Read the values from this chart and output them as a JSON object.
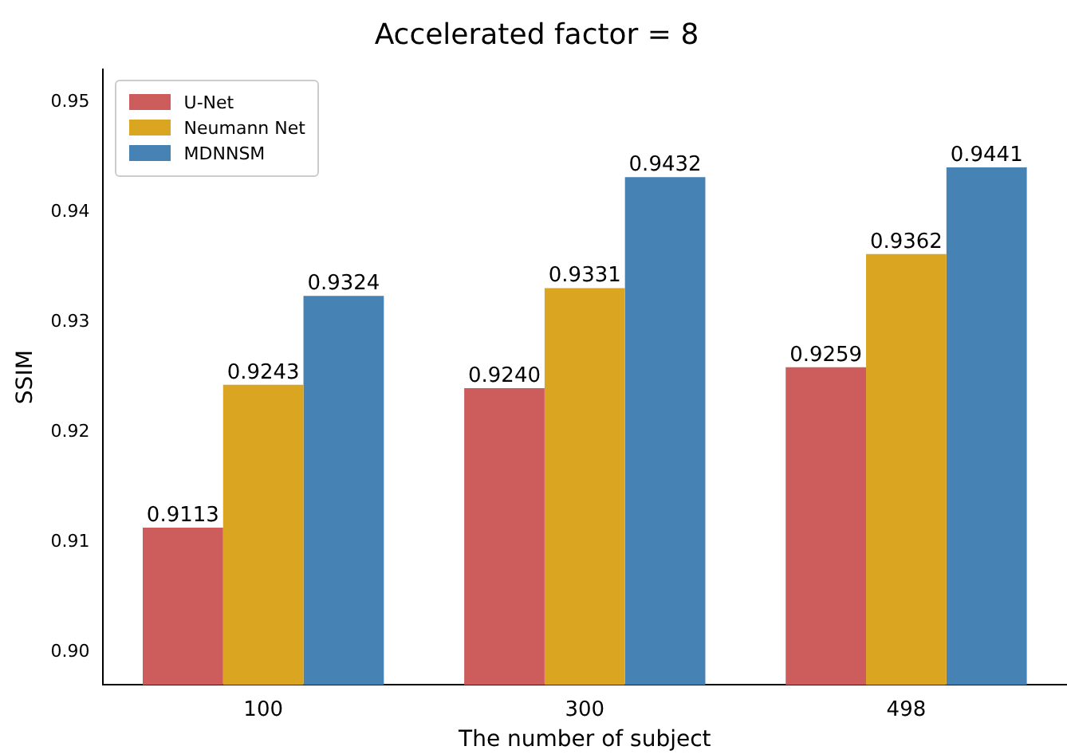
{
  "chart_data": {
    "type": "bar",
    "title": "Accelerated factor = 8",
    "xlabel": "The number of subject",
    "ylabel": "SSIM",
    "categories": [
      "100",
      "300",
      "498"
    ],
    "series": [
      {
        "name": "U-Net",
        "color": "#cd5c5c",
        "values": [
          0.9113,
          0.924,
          0.9259
        ],
        "value_labels": [
          "0.9113",
          "0.9240",
          "0.9259"
        ]
      },
      {
        "name": "Neumann Net",
        "color": "#daa520",
        "values": [
          0.9243,
          0.9331,
          0.9362
        ],
        "value_labels": [
          "0.9243",
          "0.9331",
          "0.9362"
        ]
      },
      {
        "name": "MDNNSM",
        "color": "#4682b4",
        "values": [
          0.9324,
          0.9432,
          0.9441
        ],
        "value_labels": [
          "0.9324",
          "0.9432",
          "0.9441"
        ]
      }
    ],
    "ylim": [
      0.897,
      0.953
    ],
    "yticks": [
      {
        "value": 0.9,
        "label": "0.90"
      },
      {
        "value": 0.91,
        "label": "0.91"
      },
      {
        "value": 0.92,
        "label": "0.92"
      },
      {
        "value": 0.93,
        "label": "0.93"
      },
      {
        "value": 0.94,
        "label": "0.94"
      },
      {
        "value": 0.95,
        "label": "0.95"
      }
    ],
    "grid": false,
    "legend": "top left"
  }
}
